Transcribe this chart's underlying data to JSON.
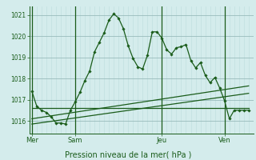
{
  "bg_color": "#d4ecec",
  "grid_color_major": "#99bbbb",
  "grid_color_minor": "#bbdddd",
  "line_color": "#1a5c1a",
  "title": "Pression niveau de la mer( hPa )",
  "ylim": [
    1015.4,
    1021.4
  ],
  "yticks": [
    1016,
    1017,
    1018,
    1019,
    1020,
    1021
  ],
  "day_labels": [
    "Mer",
    "Sam",
    "Jeu",
    "Ven"
  ],
  "day_positions": [
    0,
    9,
    27,
    40
  ],
  "xlim": [
    -0.5,
    46
  ],
  "series1_x": [
    0,
    1,
    2,
    3,
    4,
    5,
    6,
    7,
    8,
    9,
    10,
    11,
    12,
    13,
    14,
    15,
    16,
    17,
    18,
    19,
    20,
    21,
    22,
    23,
    24,
    25,
    26,
    27,
    28,
    29,
    30,
    31,
    32,
    33,
    34,
    35,
    36,
    37,
    38,
    39,
    40,
    41,
    42,
    43,
    44,
    45
  ],
  "series1_y": [
    1017.4,
    1016.7,
    1016.5,
    1016.4,
    1016.2,
    1015.9,
    1015.9,
    1015.85,
    1016.5,
    1016.9,
    1017.35,
    1017.9,
    1018.35,
    1019.25,
    1019.7,
    1020.15,
    1020.75,
    1021.05,
    1020.85,
    1020.35,
    1019.55,
    1018.95,
    1018.55,
    1018.45,
    1019.1,
    1020.2,
    1020.2,
    1019.9,
    1019.35,
    1019.15,
    1019.45,
    1019.5,
    1019.6,
    1018.85,
    1018.5,
    1018.75,
    1018.15,
    1017.8,
    1018.05,
    1017.55,
    1016.95,
    1016.1,
    1016.5,
    1016.5,
    1016.5,
    1016.5
  ],
  "series2_x": [
    0,
    45
  ],
  "series2_y": [
    1016.6,
    1016.6
  ],
  "series3_x": [
    0,
    45
  ],
  "series3_y": [
    1015.85,
    1017.3
  ],
  "series4_x": [
    0,
    45
  ],
  "series4_y": [
    1016.1,
    1017.65
  ]
}
